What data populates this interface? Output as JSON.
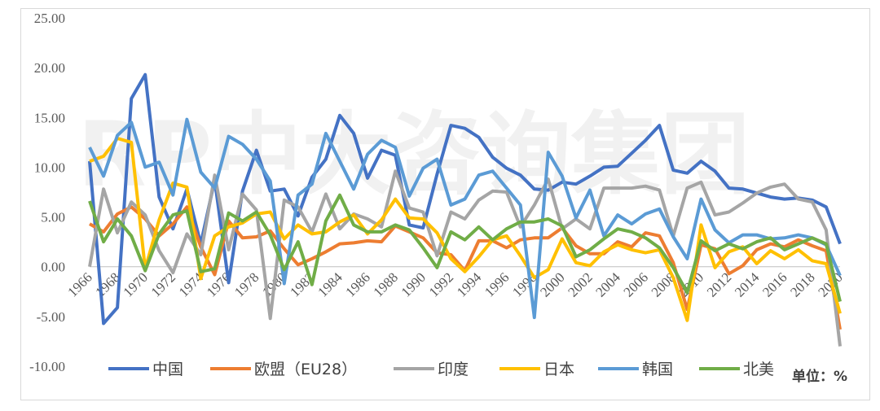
{
  "watermark": "RP中大咨询集团",
  "unit_label": "单位：%",
  "chart_data": {
    "type": "line",
    "title": "",
    "xlabel": "",
    "ylabel": "",
    "ylim": [
      -10,
      25
    ],
    "yticks": [
      "-10.00",
      "-5.00",
      "0.00",
      "5.00",
      "10.00",
      "15.00",
      "20.00",
      "25.00"
    ],
    "x_tick_labels": [
      "1966",
      "1968",
      "1970",
      "1972",
      "1974",
      "1976",
      "1978",
      "1980",
      "1982",
      "1984",
      "1986",
      "1988",
      "1990",
      "1992",
      "1994",
      "1996",
      "1998",
      "2000",
      "2002",
      "2004",
      "2006",
      "2008",
      "2010",
      "2012",
      "2014",
      "2016",
      "2018",
      "2020"
    ],
    "x": [
      1966,
      1967,
      1968,
      1969,
      1970,
      1971,
      1972,
      1973,
      1974,
      1975,
      1976,
      1977,
      1978,
      1979,
      1980,
      1981,
      1982,
      1983,
      1984,
      1985,
      1986,
      1987,
      1988,
      1989,
      1990,
      1991,
      1992,
      1993,
      1994,
      1995,
      1996,
      1997,
      1998,
      1999,
      2000,
      2001,
      2002,
      2003,
      2004,
      2005,
      2006,
      2007,
      2008,
      2009,
      2010,
      2011,
      2012,
      2013,
      2014,
      2015,
      2016,
      2017,
      2018,
      2019,
      2020
    ],
    "grid": false,
    "legend_position": "bottom",
    "series": [
      {
        "name": "中国",
        "color": "#4472c4",
        "values": [
          10.6,
          -5.7,
          -4.1,
          16.9,
          19.3,
          7.0,
          3.8,
          7.8,
          2.3,
          8.7,
          -1.6,
          7.6,
          11.7,
          7.6,
          7.8,
          5.1,
          9.0,
          10.8,
          15.2,
          13.4,
          8.9,
          11.7,
          11.2,
          4.2,
          3.9,
          9.3,
          14.2,
          13.9,
          13.0,
          11.0,
          9.9,
          9.2,
          7.8,
          7.7,
          8.5,
          8.3,
          9.1,
          10.0,
          10.1,
          11.4,
          12.7,
          14.2,
          9.7,
          9.4,
          10.6,
          9.6,
          7.9,
          7.8,
          7.4,
          7.0,
          6.8,
          6.9,
          6.7,
          6.0,
          2.3
        ]
      },
      {
        "name": "欧盟（EU28）",
        "color": "#ed7d31",
        "values": [
          4.3,
          3.5,
          5.3,
          6.0,
          4.8,
          3.1,
          4.3,
          6.0,
          2.0,
          -0.8,
          4.6,
          2.9,
          3.0,
          3.6,
          1.8,
          0.2,
          0.8,
          1.5,
          2.3,
          2.4,
          2.6,
          2.5,
          4.1,
          3.5,
          2.9,
          1.4,
          1.2,
          -0.4,
          2.6,
          2.6,
          1.9,
          2.7,
          2.9,
          2.9,
          3.9,
          2.1,
          1.3,
          1.3,
          2.5,
          2.0,
          3.4,
          3.1,
          0.4,
          -4.3,
          2.2,
          1.8,
          -0.7,
          0.1,
          1.7,
          2.3,
          2.0,
          2.7,
          2.1,
          1.6,
          -6.3
        ]
      },
      {
        "name": "印度",
        "color": "#a5a5a5",
        "values": [
          0.0,
          7.8,
          3.4,
          6.5,
          5.2,
          1.6,
          -0.6,
          3.3,
          1.2,
          9.2,
          1.7,
          7.3,
          5.7,
          -5.2,
          6.7,
          6.0,
          3.5,
          7.3,
          3.8,
          5.3,
          4.8,
          4.0,
          9.6,
          5.9,
          5.5,
          1.1,
          5.5,
          4.8,
          6.7,
          7.6,
          7.5,
          4.0,
          6.2,
          8.8,
          3.8,
          4.8,
          3.8,
          7.9,
          7.9,
          7.9,
          8.1,
          7.7,
          3.1,
          7.9,
          8.5,
          5.2,
          5.5,
          6.4,
          7.4,
          8.0,
          8.3,
          6.8,
          6.5,
          3.7,
          -8.0
        ]
      },
      {
        "name": "日本",
        "color": "#ffc000",
        "values": [
          10.6,
          11.1,
          12.9,
          12.5,
          -0.2,
          4.7,
          8.4,
          8.0,
          -1.2,
          3.1,
          4.0,
          4.4,
          5.3,
          5.5,
          2.8,
          4.2,
          3.3,
          3.5,
          4.5,
          5.2,
          3.3,
          4.7,
          6.8,
          4.9,
          4.8,
          3.4,
          0.8,
          -0.5,
          1.0,
          2.7,
          3.1,
          1.1,
          -1.1,
          -0.3,
          2.8,
          0.4,
          0.1,
          1.5,
          2.2,
          1.7,
          1.4,
          1.7,
          -1.1,
          -5.4,
          4.2,
          -0.1,
          1.5,
          2.0,
          0.3,
          1.6,
          0.8,
          1.7,
          0.6,
          0.3,
          -4.7
        ]
      },
      {
        "name": "韩国",
        "color": "#5b9bd5",
        "values": [
          12.0,
          9.1,
          13.2,
          14.5,
          10.0,
          10.5,
          7.2,
          14.8,
          9.5,
          7.9,
          13.1,
          12.3,
          10.8,
          8.6,
          -1.7,
          7.2,
          8.3,
          13.4,
          10.6,
          7.8,
          11.3,
          12.7,
          12.0,
          7.1,
          9.9,
          10.8,
          6.2,
          6.8,
          9.2,
          9.6,
          7.9,
          6.2,
          -5.1,
          11.5,
          9.1,
          4.9,
          7.7,
          3.1,
          5.2,
          4.3,
          5.3,
          5.8,
          3.0,
          0.8,
          6.8,
          3.7,
          2.4,
          3.2,
          3.2,
          2.8,
          2.9,
          3.2,
          2.9,
          2.2,
          -0.9
        ]
      },
      {
        "name": "北美",
        "color": "#70ad47",
        "values": [
          6.6,
          2.5,
          4.8,
          3.1,
          -0.4,
          3.3,
          5.2,
          5.6,
          -0.5,
          -0.2,
          5.4,
          4.6,
          5.5,
          3.2,
          -0.3,
          2.5,
          -1.8,
          4.6,
          7.2,
          4.2,
          3.5,
          3.5,
          4.2,
          3.7,
          1.9,
          -0.1,
          3.5,
          2.7,
          4.0,
          2.7,
          3.8,
          4.5,
          4.5,
          4.8,
          4.1,
          1.0,
          1.7,
          2.8,
          3.8,
          3.5,
          2.9,
          1.9,
          -0.1,
          -2.6,
          2.6,
          1.6,
          2.3,
          1.8,
          2.5,
          2.9,
          1.7,
          2.3,
          2.9,
          2.3,
          -3.5
        ]
      }
    ]
  }
}
